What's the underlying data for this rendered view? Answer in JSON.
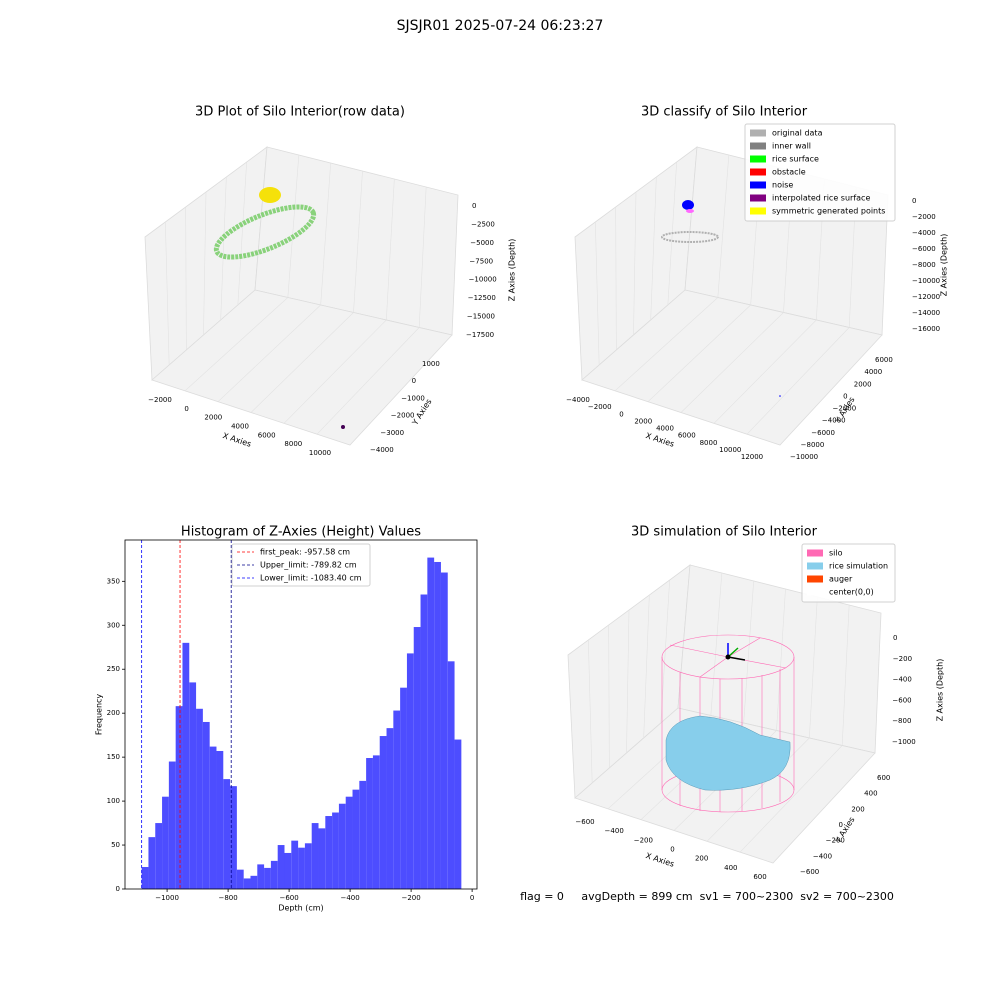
{
  "title": "SJSJR01 2025-07-24 06:23:27",
  "chart_data": [
    {
      "type": "scatter3d",
      "title": "3D Plot of Silo Interior(row data)",
      "xlabel": "X Axies",
      "ylabel": "Y Axies",
      "zlabel": "Z Axies (Depth)",
      "xticks": [
        {
          "value": -2000,
          "label": "−2000"
        },
        0,
        2000,
        4000,
        6000,
        8000,
        10000
      ],
      "yticks": [
        1000,
        0,
        {
          "value": -1000,
          "label": "−1000"
        },
        {
          "value": -2000,
          "label": "−2000"
        },
        {
          "value": -3000,
          "label": "−3000"
        },
        {
          "value": -4000,
          "label": "−4000"
        }
      ],
      "zticks": [
        0,
        {
          "value": -2500,
          "label": "−2500"
        },
        {
          "value": -5000,
          "label": "−5000"
        },
        {
          "value": -7500,
          "label": "−7500"
        },
        {
          "value": -10000,
          "label": "−10000"
        },
        {
          "value": -12500,
          "label": "−12500"
        },
        {
          "value": -15000,
          "label": "−15000"
        },
        {
          "value": -17500,
          "label": "−17500"
        }
      ]
    },
    {
      "type": "scatter3d",
      "title": "3D classify of Silo Interior",
      "xlabel": "X Axies",
      "ylabel": "Y Axies",
      "zlabel": "Z Axies (Depth)",
      "xticks": [
        {
          "value": -4000,
          "label": "−4000"
        },
        {
          "value": -2000,
          "label": "−2000"
        },
        0,
        2000,
        4000,
        6000,
        8000,
        10000,
        12000
      ],
      "yticks": [
        6000,
        4000,
        2000,
        0,
        {
          "value": -2000,
          "label": "−2000"
        },
        {
          "value": -4000,
          "label": "−4000"
        },
        {
          "value": -6000,
          "label": "−6000"
        },
        {
          "value": -8000,
          "label": "−8000"
        },
        {
          "value": -10000,
          "label": "−10000"
        }
      ],
      "zticks": [
        0,
        {
          "value": -2000,
          "label": "−2000"
        },
        {
          "value": -4000,
          "label": "−4000"
        },
        {
          "value": -6000,
          "label": "−6000"
        },
        {
          "value": -8000,
          "label": "−8000"
        },
        {
          "value": -10000,
          "label": "−10000"
        },
        {
          "value": -12000,
          "label": "−12000"
        },
        {
          "value": -14000,
          "label": "−14000"
        },
        {
          "value": -16000,
          "label": "−16000"
        }
      ],
      "legend": [
        {
          "name": "original data",
          "color": "#b0b0b0"
        },
        {
          "name": "inner wall",
          "color": "#808080"
        },
        {
          "name": "rice surface",
          "color": "#00ff00"
        },
        {
          "name": "obstacle",
          "color": "#ff0000"
        },
        {
          "name": "noise",
          "color": "#0000ff"
        },
        {
          "name": "interpolated rice surface",
          "color": "#800080"
        },
        {
          "name": "symmetric generated points",
          "color": "#ffff00"
        }
      ]
    },
    {
      "type": "histogram",
      "title": "Histogram of Z-Axies (Height) Values",
      "xlabel": "Depth (cm)",
      "ylabel": "Frequency",
      "color": "#4d4dff",
      "bins": [
        -1083.4,
        -1061.1,
        -1038.8,
        -1016.5,
        -994.2,
        -971.9,
        -949.6,
        -927.3,
        -905.0,
        -882.7,
        -860.4,
        -838.1,
        -815.8,
        -793.5,
        -771.2,
        -748.9,
        -726.6,
        -704.3,
        -682.0,
        -659.7,
        -637.4,
        -615.1,
        -592.8,
        -570.5,
        -548.2,
        -525.9,
        -503.6,
        -481.3,
        -459.0,
        -436.7,
        -414.4,
        -392.1,
        -369.8,
        -347.5,
        -325.2,
        -302.9,
        -280.6,
        -258.3,
        -236.0,
        -213.7,
        -191.4,
        -169.1,
        -146.8,
        -124.5,
        -102.2,
        -79.9,
        -57.6,
        -35.3
      ],
      "values": [
        25,
        59,
        75,
        105,
        145,
        208,
        280,
        235,
        205,
        190,
        162,
        157,
        125,
        117,
        22,
        12,
        15,
        28,
        24,
        32,
        50,
        41,
        55,
        47,
        52,
        75,
        69,
        83,
        87,
        97,
        105,
        113,
        123,
        149,
        152,
        174,
        183,
        203,
        229,
        268,
        298,
        335,
        377,
        372,
        360,
        259,
        170
      ],
      "xlim": [
        -1138,
        16
      ],
      "ylim": [
        0,
        397
      ],
      "xticks": [
        {
          "value": -1000,
          "label": "−1000"
        },
        {
          "value": -800,
          "label": "−800"
        },
        {
          "value": -600,
          "label": "−600"
        },
        {
          "value": -400,
          "label": "−400"
        },
        {
          "value": -200,
          "label": "−200"
        },
        0
      ],
      "yticks": [
        0,
        50,
        100,
        150,
        200,
        250,
        300,
        350
      ],
      "vlines": [
        {
          "name": "first_peak: -957.58 cm",
          "value": -957.58,
          "color": "#ff0000"
        },
        {
          "name": "Upper_limit: -789.82 cm",
          "value": -789.82,
          "color": "#00008b"
        },
        {
          "name": "Lower_limit: -1083.40 cm",
          "value": -1083.4,
          "color": "#0000ff"
        }
      ]
    },
    {
      "type": "surface3d",
      "title": "3D simulation of Silo Interior",
      "xlabel": "X Axies",
      "ylabel": "Y Axies",
      "zlabel": "Z Axies (Depth)",
      "xticks": [
        {
          "value": -600,
          "label": "−600"
        },
        {
          "value": -400,
          "label": "−400"
        },
        {
          "value": -200,
          "label": "−200"
        },
        0,
        200,
        400,
        600
      ],
      "yticks": [
        600,
        400,
        200,
        0,
        {
          "value": -200,
          "label": "−200"
        },
        {
          "value": -400,
          "label": "−400"
        },
        {
          "value": -600,
          "label": "−600"
        }
      ],
      "zticks": [
        0,
        {
          "value": -200,
          "label": "−200"
        },
        {
          "value": -400,
          "label": "−400"
        },
        {
          "value": -600,
          "label": "−600"
        },
        {
          "value": -800,
          "label": "−800"
        },
        {
          "value": -1000,
          "label": "−1000"
        }
      ],
      "legend": [
        {
          "name": "silo",
          "color": "#ff69b4"
        },
        {
          "name": "rice simulation",
          "color": "#87ceeb"
        },
        {
          "name": "auger",
          "color": "#ff4500"
        },
        {
          "name": "center(0,0)",
          "color": "#ffffff"
        }
      ]
    }
  ],
  "status": "flag = 0     avgDepth = 899 cm  sv1 = 700~2300  sv2 = 700~2300"
}
